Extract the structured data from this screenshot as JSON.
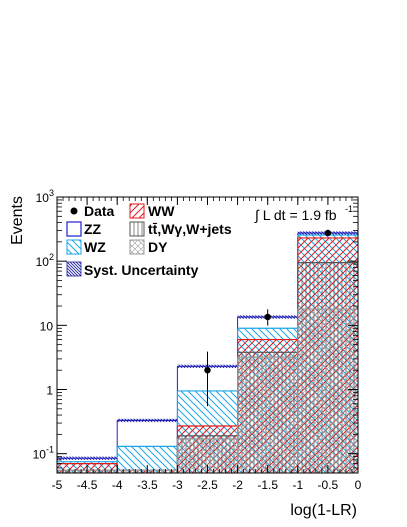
{
  "chart_data": {
    "type": "bar",
    "subtype": "stacked-histogram",
    "xlabel": "log(1-LR)",
    "ylabel": "Events",
    "xlim": [
      -5,
      0
    ],
    "ylim": [
      0.05,
      1000
    ],
    "yscale": "log",
    "grid": false,
    "legend_position": "top-left",
    "luminosity_label": "∫ L dt = 1.9 fb",
    "luminosity_exponent": "-1",
    "x_ticks": [
      {
        "value": -5,
        "label": "-5"
      },
      {
        "value": -4.5,
        "label": "-4.5"
      },
      {
        "value": -4,
        "label": "-4"
      },
      {
        "value": -3.5,
        "label": "-3.5"
      },
      {
        "value": -3,
        "label": "-3"
      },
      {
        "value": -2.5,
        "label": "-2.5"
      },
      {
        "value": -2,
        "label": "-2"
      },
      {
        "value": -1.5,
        "label": "-1.5"
      },
      {
        "value": -1,
        "label": "-1"
      },
      {
        "value": -0.5,
        "label": "-0.5"
      },
      {
        "value": 0,
        "label": "0"
      }
    ],
    "y_ticks": [
      {
        "value": 0.1,
        "base": "10",
        "exp": "-1"
      },
      {
        "value": 1,
        "base": "1",
        "exp": ""
      },
      {
        "value": 10,
        "base": "10",
        "exp": ""
      },
      {
        "value": 100,
        "base": "10",
        "exp": "2"
      },
      {
        "value": 1000,
        "base": "10",
        "exp": "3"
      }
    ],
    "bins": [
      -5,
      -4,
      -3,
      -2,
      -1,
      0
    ],
    "series": [
      {
        "name": "DY",
        "cumulative": [
          0.055,
          0.055,
          0.17,
          3.2,
          18
        ],
        "color": "#999999",
        "pattern": "crosshatch"
      },
      {
        "name": "tt̄,Wγ,W+jets",
        "cumulative": [
          0.055,
          0.055,
          0.19,
          3.8,
          95
        ],
        "color": "#555555",
        "pattern": "vertical"
      },
      {
        "name": "WW",
        "cumulative": [
          0.07,
          0.055,
          0.27,
          6.0,
          230
        ],
        "color": "#e8191b",
        "pattern": "diagonal"
      },
      {
        "name": "WZ",
        "cumulative": [
          0.075,
          0.13,
          0.95,
          9.0,
          255
        ],
        "color": "#19a6e8",
        "pattern": "diagonal-rev"
      },
      {
        "name": "ZZ",
        "cumulative": [
          0.085,
          0.33,
          2.3,
          13.5,
          275
        ],
        "color": "#1f1fd2",
        "pattern": "outline"
      }
    ],
    "syst_uncertainty": {
      "name": "Syst. Uncertainty",
      "rel": 0.06,
      "color": "#1f1fa0"
    },
    "data_points": {
      "name": "Data",
      "x": [
        -2.5,
        -1.5,
        -0.5
      ],
      "y": [
        2,
        13.5,
        275
      ],
      "y_err_low": [
        1.45,
        3.6,
        16
      ],
      "y_err_high": [
        1.9,
        4.3,
        17
      ]
    }
  }
}
